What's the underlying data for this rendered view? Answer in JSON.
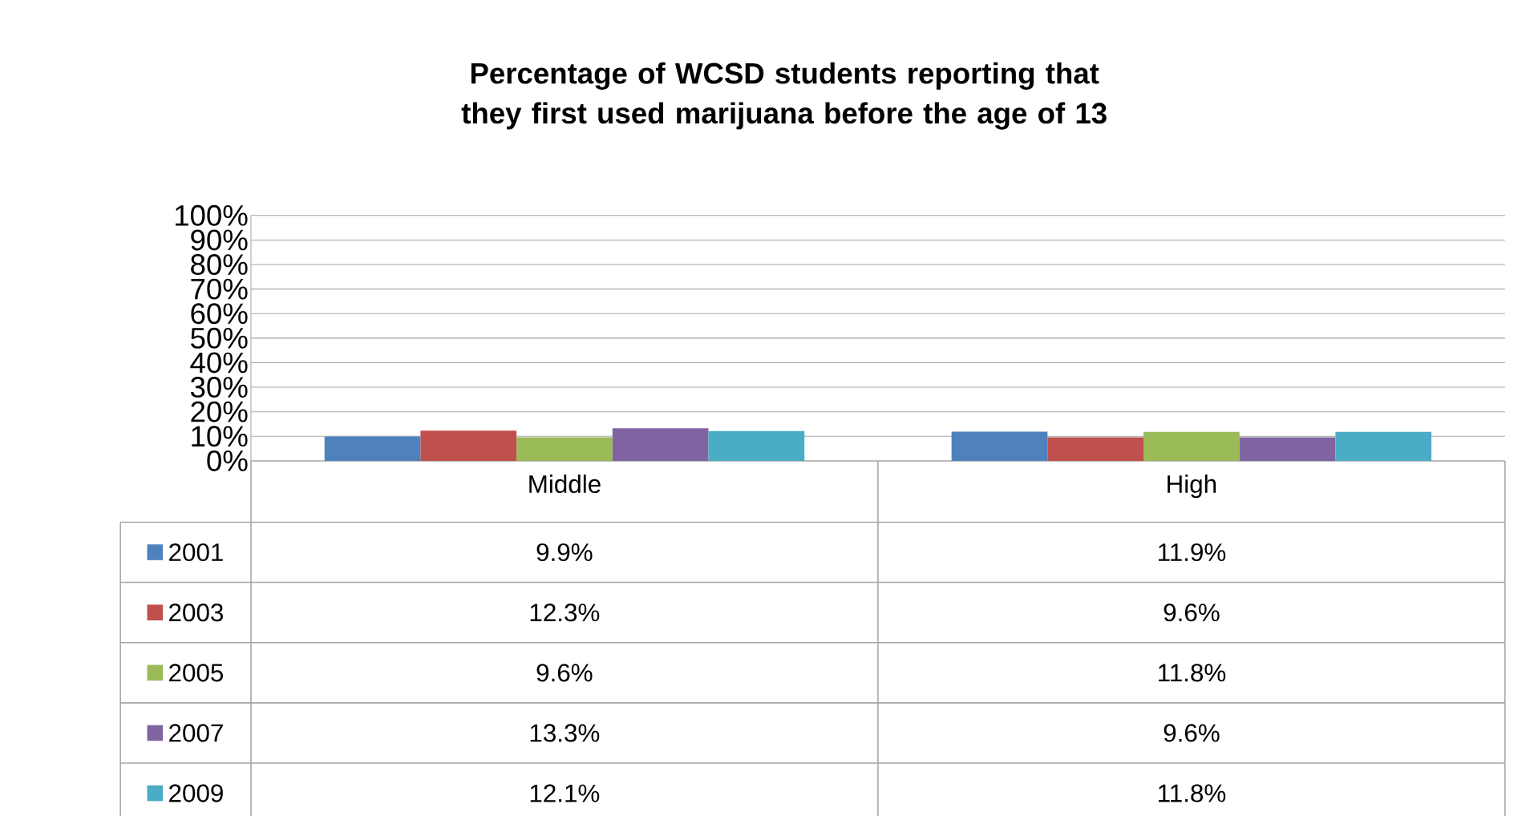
{
  "chart_data": {
    "type": "bar",
    "title": "Percentage of WCSD students reporting that they first used marijuana before the age of 13",
    "categories": [
      "Middle",
      "High"
    ],
    "series": [
      {
        "name": "2001",
        "color": "#4f81bd",
        "values": [
          9.9,
          11.9
        ],
        "value_labels": [
          "9.9%",
          "11.9%"
        ]
      },
      {
        "name": "2003",
        "color": "#c0504d",
        "values": [
          12.3,
          9.6
        ],
        "value_labels": [
          "12.3%",
          "9.6%"
        ]
      },
      {
        "name": "2005",
        "color": "#9bbb59",
        "values": [
          9.6,
          11.8
        ],
        "value_labels": [
          "9.6%",
          "11.8%"
        ]
      },
      {
        "name": "2007",
        "color": "#8064a2",
        "values": [
          13.3,
          9.6
        ],
        "value_labels": [
          "13.3%",
          "9.6%"
        ]
      },
      {
        "name": "2009",
        "color": "#4bacc6",
        "values": [
          12.1,
          11.8
        ],
        "value_labels": [
          "12.1%",
          "11.8%"
        ]
      }
    ],
    "ylim": [
      0,
      100
    ],
    "yticks": [
      {
        "value": 0,
        "label": "0%"
      },
      {
        "value": 10,
        "label": "10%"
      },
      {
        "value": 20,
        "label": "20%"
      },
      {
        "value": 30,
        "label": "30%"
      },
      {
        "value": 40,
        "label": "40%"
      },
      {
        "value": 50,
        "label": "50%"
      },
      {
        "value": 60,
        "label": "60%"
      },
      {
        "value": 70,
        "label": "70%"
      },
      {
        "value": 80,
        "label": "80%"
      },
      {
        "value": 90,
        "label": "90%"
      },
      {
        "value": 100,
        "label": "100%"
      }
    ],
    "grid": "y",
    "legend": "bottom"
  }
}
